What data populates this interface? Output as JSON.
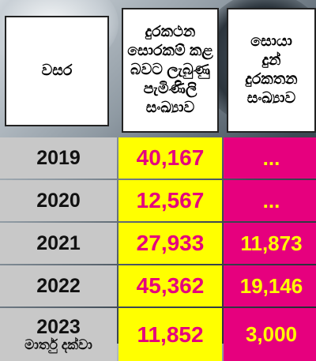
{
  "headers": {
    "year": "වසර",
    "reported": [
      "දුරකථන",
      "සොරකම් කළ",
      "බවට ලැබුණු",
      "පැමිණිලි",
      "සංඛ්‍යාව"
    ],
    "found": [
      "සොයා",
      "දුන්",
      "දුරකතන",
      "සංඛ්‍යාව"
    ]
  },
  "rows": [
    {
      "year": "2019",
      "year_sub": "",
      "reported": "40,167",
      "found": "..."
    },
    {
      "year": "2020",
      "year_sub": "",
      "reported": "12,567",
      "found": "..."
    },
    {
      "year": "2021",
      "year_sub": "",
      "reported": "27,933",
      "found": "11,873"
    },
    {
      "year": "2022",
      "year_sub": "",
      "reported": "45,362",
      "found": "19,146"
    },
    {
      "year": "2023",
      "year_sub": "මාර්තු දක්වා",
      "reported": "11,852",
      "found": "3,000"
    }
  ],
  "colors": {
    "year_bg": "#c8c8c8",
    "reported_bg": "#ffff00",
    "reported_text": "#e5007e",
    "found_bg": "#e6007e",
    "found_text": "#ffff00"
  }
}
